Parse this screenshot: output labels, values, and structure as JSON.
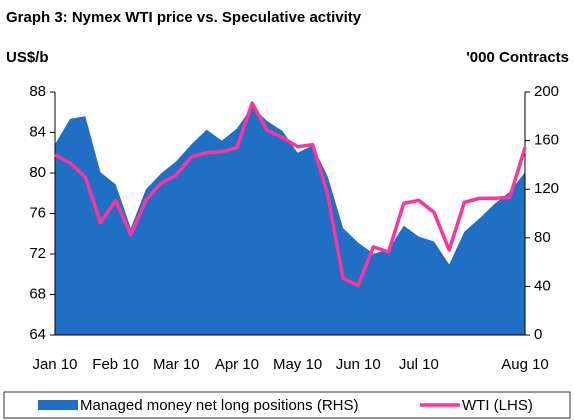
{
  "chart_data": {
    "type": "area-line",
    "title": "Graph 3: Nymex WTI price vs. Speculative activity",
    "y_label": "US$/b",
    "y2_label": "'000 Contracts",
    "categories": [
      "Jan 10",
      null,
      null,
      null,
      "Feb 10",
      null,
      null,
      null,
      "Mar 10",
      null,
      null,
      null,
      "Apr 10",
      null,
      null,
      null,
      "May 10",
      null,
      null,
      null,
      "Jun 10",
      null,
      null,
      null,
      "Jul 10",
      null,
      null,
      null,
      null,
      null,
      null,
      "Aug 10"
    ],
    "series": [
      {
        "name": "Managed money net long positions (RHS)",
        "color": "#1f6fc5",
        "axis": "y2",
        "kind": "area",
        "values": [
          157,
          178,
          180,
          134,
          124,
          88,
          120,
          133,
          143,
          157,
          169,
          160,
          170,
          188,
          176,
          168,
          150,
          156,
          130,
          88,
          76,
          67,
          70,
          90,
          81,
          77,
          58,
          85,
          96,
          108,
          118,
          134
        ]
      },
      {
        "name": "WTI (LHS)",
        "color": "#ff3399",
        "axis": "y",
        "kind": "line",
        "values": [
          81.8,
          81,
          79.6,
          75.1,
          77.3,
          73.9,
          77.3,
          79,
          79.8,
          81.6,
          82,
          82.1,
          82.5,
          86.9,
          84.2,
          83.5,
          82.6,
          82.8,
          77.8,
          69.6,
          68.9,
          72.7,
          72.2,
          77,
          77.3,
          76.1,
          72.4,
          77.1,
          77.5,
          77.5,
          77.6,
          82.5
        ]
      }
    ],
    "ylim": [
      64,
      88
    ],
    "yticks": [
      64,
      68,
      72,
      76,
      80,
      84,
      88
    ],
    "y2lim": [
      0,
      200
    ],
    "y2ticks": [
      0,
      40,
      80,
      120,
      160,
      200
    ],
    "legend": "bottom"
  }
}
